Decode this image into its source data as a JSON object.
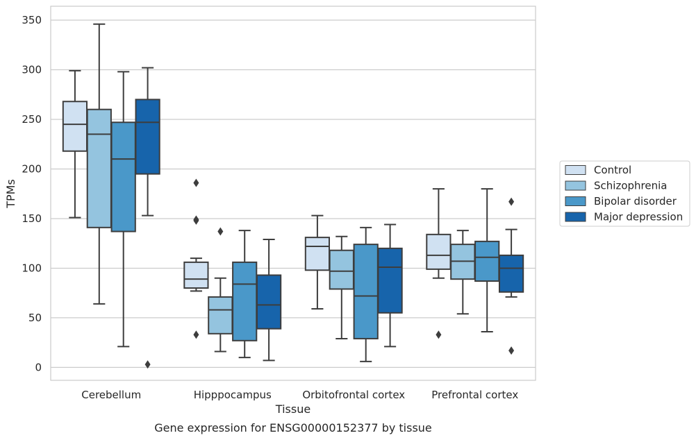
{
  "chart_data": {
    "type": "box",
    "title": "Gene expression for ENSG00000152377 by tissue",
    "xlabel": "Tissue",
    "ylabel": "TPMs",
    "ylim": [
      -13,
      364
    ],
    "yticks": [
      0,
      50,
      100,
      150,
      200,
      250,
      300,
      350
    ],
    "grid": "horizontal",
    "legend_position": "right",
    "categories": [
      "Cerebellum",
      "Hipppocampus",
      "Orbitofrontal cortex",
      "Prefrontal cortex"
    ],
    "series": [
      {
        "name": "Control",
        "color": "#d0e1f2",
        "boxes": [
          {
            "whislo": 151,
            "q1": 218,
            "med": 245,
            "q3": 268,
            "whishi": 299,
            "fliers": []
          },
          {
            "whislo": 77,
            "q1": 80,
            "med": 89,
            "q3": 106,
            "whishi": 110,
            "fliers": [
              186,
              149,
              148,
              33
            ]
          },
          {
            "whislo": 59,
            "q1": 98,
            "med": 122,
            "q3": 131,
            "whishi": 153,
            "fliers": []
          },
          {
            "whislo": 90,
            "q1": 99,
            "med": 113,
            "q3": 134,
            "whishi": 180,
            "fliers": [
              33
            ]
          }
        ]
      },
      {
        "name": "Schizophrenia",
        "color": "#94c4df",
        "boxes": [
          {
            "whislo": 64,
            "q1": 141,
            "med": 235,
            "q3": 260,
            "whishi": 346,
            "fliers": []
          },
          {
            "whislo": 16,
            "q1": 34,
            "med": 58,
            "q3": 71,
            "whishi": 90,
            "fliers": [
              137
            ]
          },
          {
            "whislo": 29,
            "q1": 79,
            "med": 97,
            "q3": 118,
            "whishi": 132,
            "fliers": []
          },
          {
            "whislo": 54,
            "q1": 89,
            "med": 107,
            "q3": 124,
            "whishi": 138,
            "fliers": []
          }
        ]
      },
      {
        "name": "Bipolar disorder",
        "color": "#4a98c9",
        "boxes": [
          {
            "whislo": 21,
            "q1": 137,
            "med": 210,
            "q3": 247,
            "whishi": 298,
            "fliers": []
          },
          {
            "whislo": 10,
            "q1": 27,
            "med": 84,
            "q3": 106,
            "whishi": 138,
            "fliers": []
          },
          {
            "whislo": 6,
            "q1": 29,
            "med": 72,
            "q3": 124,
            "whishi": 141,
            "fliers": []
          },
          {
            "whislo": 36,
            "q1": 87,
            "med": 111,
            "q3": 127,
            "whishi": 180,
            "fliers": []
          }
        ]
      },
      {
        "name": "Major depression",
        "color": "#1764ab",
        "boxes": [
          {
            "whislo": 153,
            "q1": 195,
            "med": 247,
            "q3": 270,
            "whishi": 302,
            "fliers": [
              3
            ]
          },
          {
            "whislo": 7,
            "q1": 39,
            "med": 63,
            "q3": 93,
            "whishi": 129,
            "fliers": []
          },
          {
            "whislo": 21,
            "q1": 55,
            "med": 101,
            "q3": 120,
            "whishi": 144,
            "fliers": []
          },
          {
            "whislo": 71,
            "q1": 76,
            "med": 100,
            "q3": 113,
            "whishi": 139,
            "fliers": [
              167,
              17
            ]
          }
        ]
      }
    ]
  }
}
